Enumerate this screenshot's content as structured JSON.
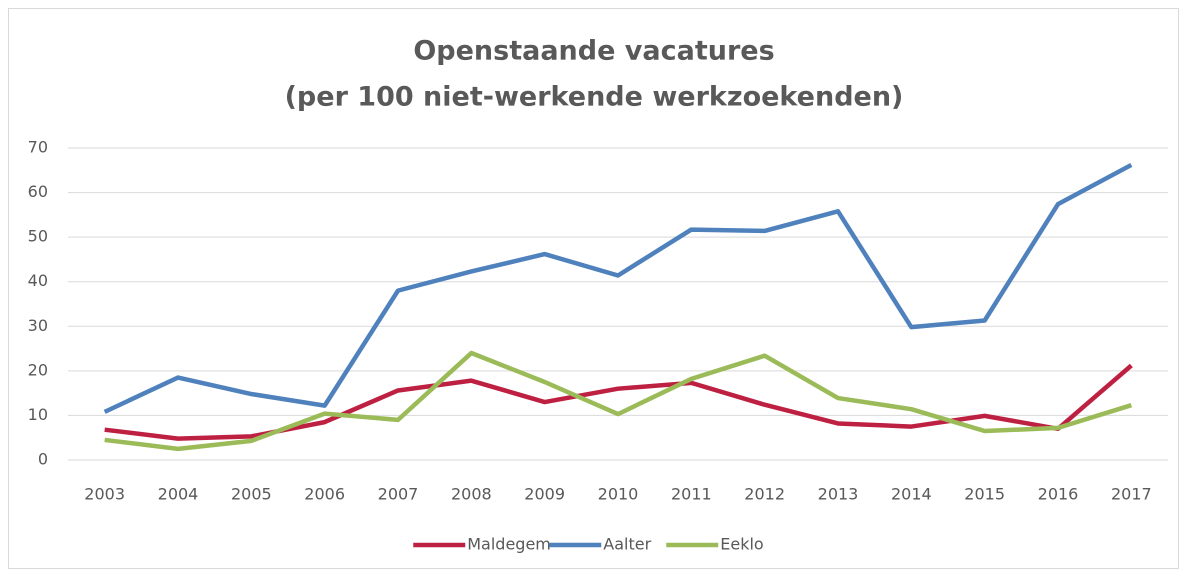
{
  "chart_data": {
    "type": "line",
    "title": [
      "Openstaande vacatures",
      "(per 100 niet-werkende werkzoekenden)"
    ],
    "categories": [
      "2003",
      "2004",
      "2005",
      "2006",
      "2007",
      "2008",
      "2009",
      "2010",
      "2011",
      "2012",
      "2013",
      "2014",
      "2015",
      "2016",
      "2017"
    ],
    "series": [
      {
        "name": "Maldegem",
        "color": "#be2042",
        "values": [
          6.8,
          4.8,
          5.3,
          8.5,
          15.6,
          17.8,
          13,
          16,
          17.3,
          12.4,
          8.2,
          7.5,
          9.9,
          7,
          21.2
        ]
      },
      {
        "name": "Aalter",
        "color": "#4f81bd",
        "values": [
          10.8,
          18.5,
          14.8,
          12.2,
          38,
          42.3,
          46.2,
          41.4,
          51.7,
          51.4,
          55.8,
          29.8,
          31.3,
          57.4,
          66.2
        ]
      },
      {
        "name": "Eeklo",
        "color": "#9bbb59",
        "values": [
          4.5,
          2.5,
          4.3,
          10.4,
          9,
          24,
          17.5,
          10.3,
          18.2,
          23.4,
          13.9,
          11.4,
          6.5,
          7.2,
          12.3
        ]
      }
    ],
    "ylim": [
      0,
      70
    ],
    "yticks": [
      0,
      10,
      20,
      30,
      40,
      50,
      60,
      70
    ],
    "grid": true,
    "legend": "bottom"
  }
}
